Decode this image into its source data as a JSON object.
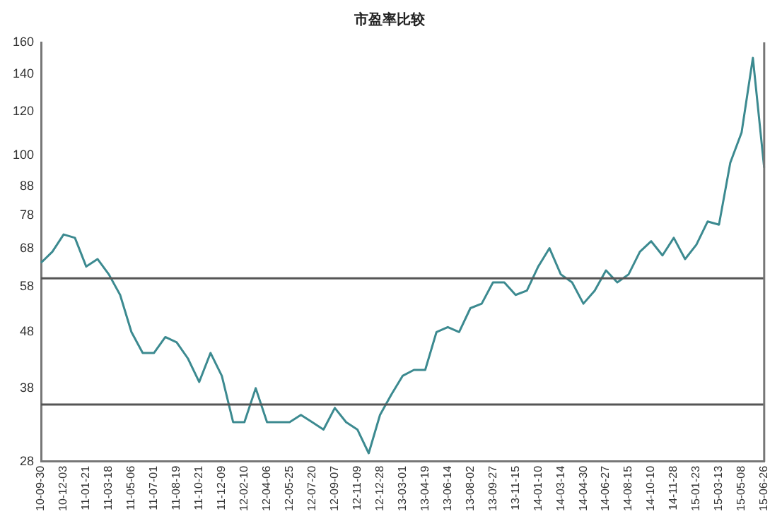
{
  "chart_data": {
    "type": "line",
    "title": "市盈率比较",
    "categories": [
      "10-09-30",
      null,
      "10-12-03",
      null,
      "11-01-21",
      null,
      "11-03-18",
      null,
      "11-05-06",
      null,
      "11-07-01",
      null,
      "11-08-19",
      null,
      "11-10-21",
      null,
      "11-12-09",
      null,
      "12-02-10",
      null,
      "12-04-06",
      null,
      "12-05-25",
      null,
      "12-07-20",
      null,
      "12-09-07",
      null,
      "12-11-09",
      null,
      "12-12-28",
      null,
      "13-03-01",
      null,
      "13-04-19",
      null,
      "13-06-14",
      null,
      "13-08-02",
      null,
      "13-09-27",
      null,
      "13-11-15",
      null,
      "14-01-10",
      null,
      "14-03-14",
      null,
      "14-04-30",
      null,
      "14-06-27",
      null,
      "14-08-15",
      null,
      "14-10-10",
      null,
      "14-11-28",
      null,
      "15-01-23",
      null,
      "15-03-13",
      null,
      "15-05-08",
      null,
      "15-06-26"
    ],
    "series": [
      {
        "color": "#3c8a90",
        "values": [
          64,
          67,
          72,
          71,
          63,
          65,
          61,
          56,
          48,
          44,
          44,
          47,
          46,
          43,
          39,
          44,
          40,
          33,
          33,
          38,
          33,
          33,
          33,
          34,
          33,
          32,
          35,
          33,
          32,
          29,
          34,
          37,
          40,
          41,
          41,
          48,
          49,
          48,
          53,
          54,
          59,
          59,
          56,
          57,
          63,
          68,
          61,
          59,
          54,
          57,
          62,
          59,
          61,
          67,
          70,
          66,
          71,
          65,
          69,
          76,
          75,
          97,
          110,
          150,
          95
        ]
      }
    ],
    "log": "y",
    "ylim": [
      28,
      160
    ],
    "yticks": [
      28,
      38,
      48,
      58,
      68,
      78,
      88,
      100,
      120,
      140,
      160
    ],
    "ref_lines": [
      {
        "axis": "y",
        "value": 60,
        "color": "#555555"
      },
      {
        "axis": "y",
        "value": 35.5,
        "color": "#555555"
      }
    ],
    "grid": false,
    "legend": false,
    "marker": "none",
    "line_style": "solid"
  }
}
